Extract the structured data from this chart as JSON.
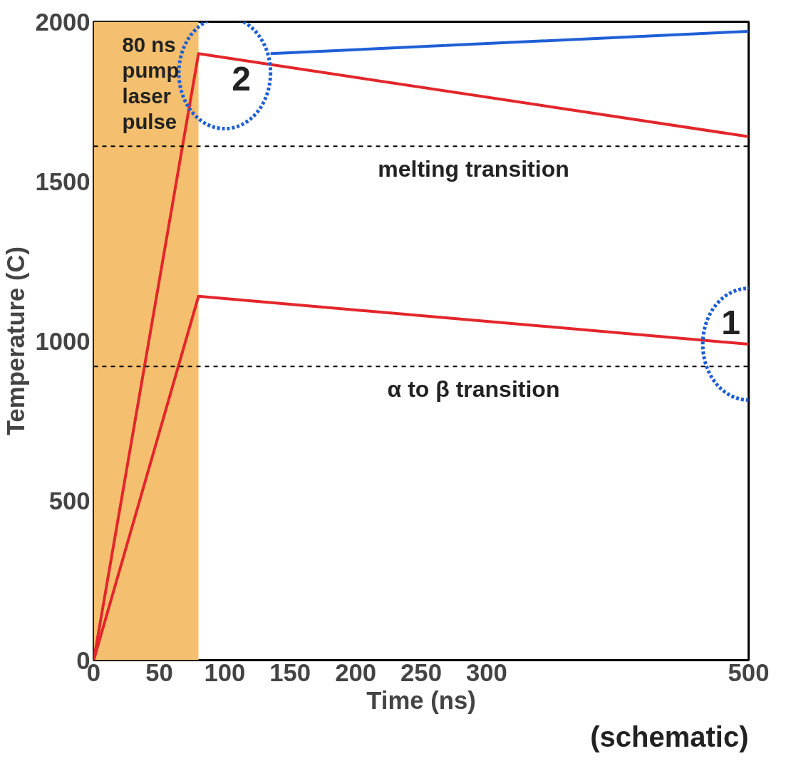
{
  "chart_data": {
    "type": "line",
    "xlabel": "Time (ns)",
    "ylabel": "Temperature (C)",
    "xlim": [
      0,
      500
    ],
    "ylim": [
      0,
      2000
    ],
    "xticks": [
      0,
      50,
      100,
      150,
      200,
      250,
      300,
      500
    ],
    "yticks": [
      0,
      500,
      1000,
      1500,
      2000
    ],
    "grid": false,
    "marker": "none",
    "line_style": "solid",
    "series": [
      {
        "color": "#e3262b",
        "x": [
          0,
          80,
          500
        ],
        "values": [
          0,
          1900,
          1640
        ]
      },
      {
        "color": "#e3262b",
        "x": [
          0,
          80,
          500
        ],
        "values": [
          0,
          1140,
          990
        ]
      }
    ],
    "bands": [
      {
        "axis": "x",
        "from": 0,
        "to": 80,
        "label": "80 ns\npump\nlaser\npulse",
        "color": "#f4c06f"
      }
    ],
    "ref_lines": [
      {
        "axis": "y",
        "value": 1610,
        "label": "melting transition",
        "line_style": "dashed",
        "color": "#000000"
      },
      {
        "axis": "y",
        "value": 920,
        "label": "α to β transition",
        "line_style": "dashed",
        "color": "#000000"
      }
    ],
    "annotations": [
      {
        "text": "2",
        "x": 80,
        "y": 1900
      },
      {
        "text": "1",
        "x": 500,
        "y": 990
      },
      "(schematic)"
    ]
  }
}
